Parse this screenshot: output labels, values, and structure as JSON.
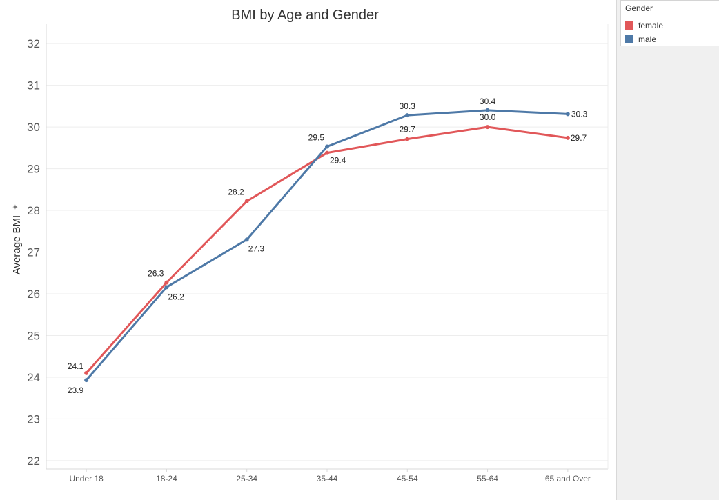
{
  "chart_data": {
    "type": "line",
    "title": "BMI by Age and Gender",
    "xlabel": "",
    "ylabel": "Average BMI",
    "categories": [
      "Under 18",
      "18-24",
      "25-34",
      "35-44",
      "45-54",
      "55-64",
      "65 and Over"
    ],
    "yticks": [
      "22",
      "23",
      "24",
      "25",
      "26",
      "27",
      "28",
      "29",
      "30",
      "31",
      "32"
    ],
    "ylim": [
      21.8,
      32.3
    ],
    "grid": true,
    "legend_position": "top-right",
    "series": [
      {
        "name": "female",
        "color": "#e15759",
        "values": [
          24.1,
          26.27,
          28.22,
          29.38,
          29.71,
          30.0,
          29.74
        ],
        "labels": [
          "24.1",
          "26.3",
          "28.2",
          "29.4",
          "29.7",
          "30.0",
          "29.7"
        ]
      },
      {
        "name": "male",
        "color": "#4e79a7",
        "values": [
          23.93,
          26.16,
          27.3,
          29.53,
          30.28,
          30.4,
          30.31
        ],
        "labels": [
          "23.9",
          "26.2",
          "27.3",
          "29.5",
          "30.3",
          "30.4",
          "30.3"
        ]
      }
    ]
  },
  "legend": {
    "title": "Gender",
    "items": [
      {
        "label": "female",
        "color": "#e15759"
      },
      {
        "label": "male",
        "color": "#4e79a7"
      }
    ]
  }
}
